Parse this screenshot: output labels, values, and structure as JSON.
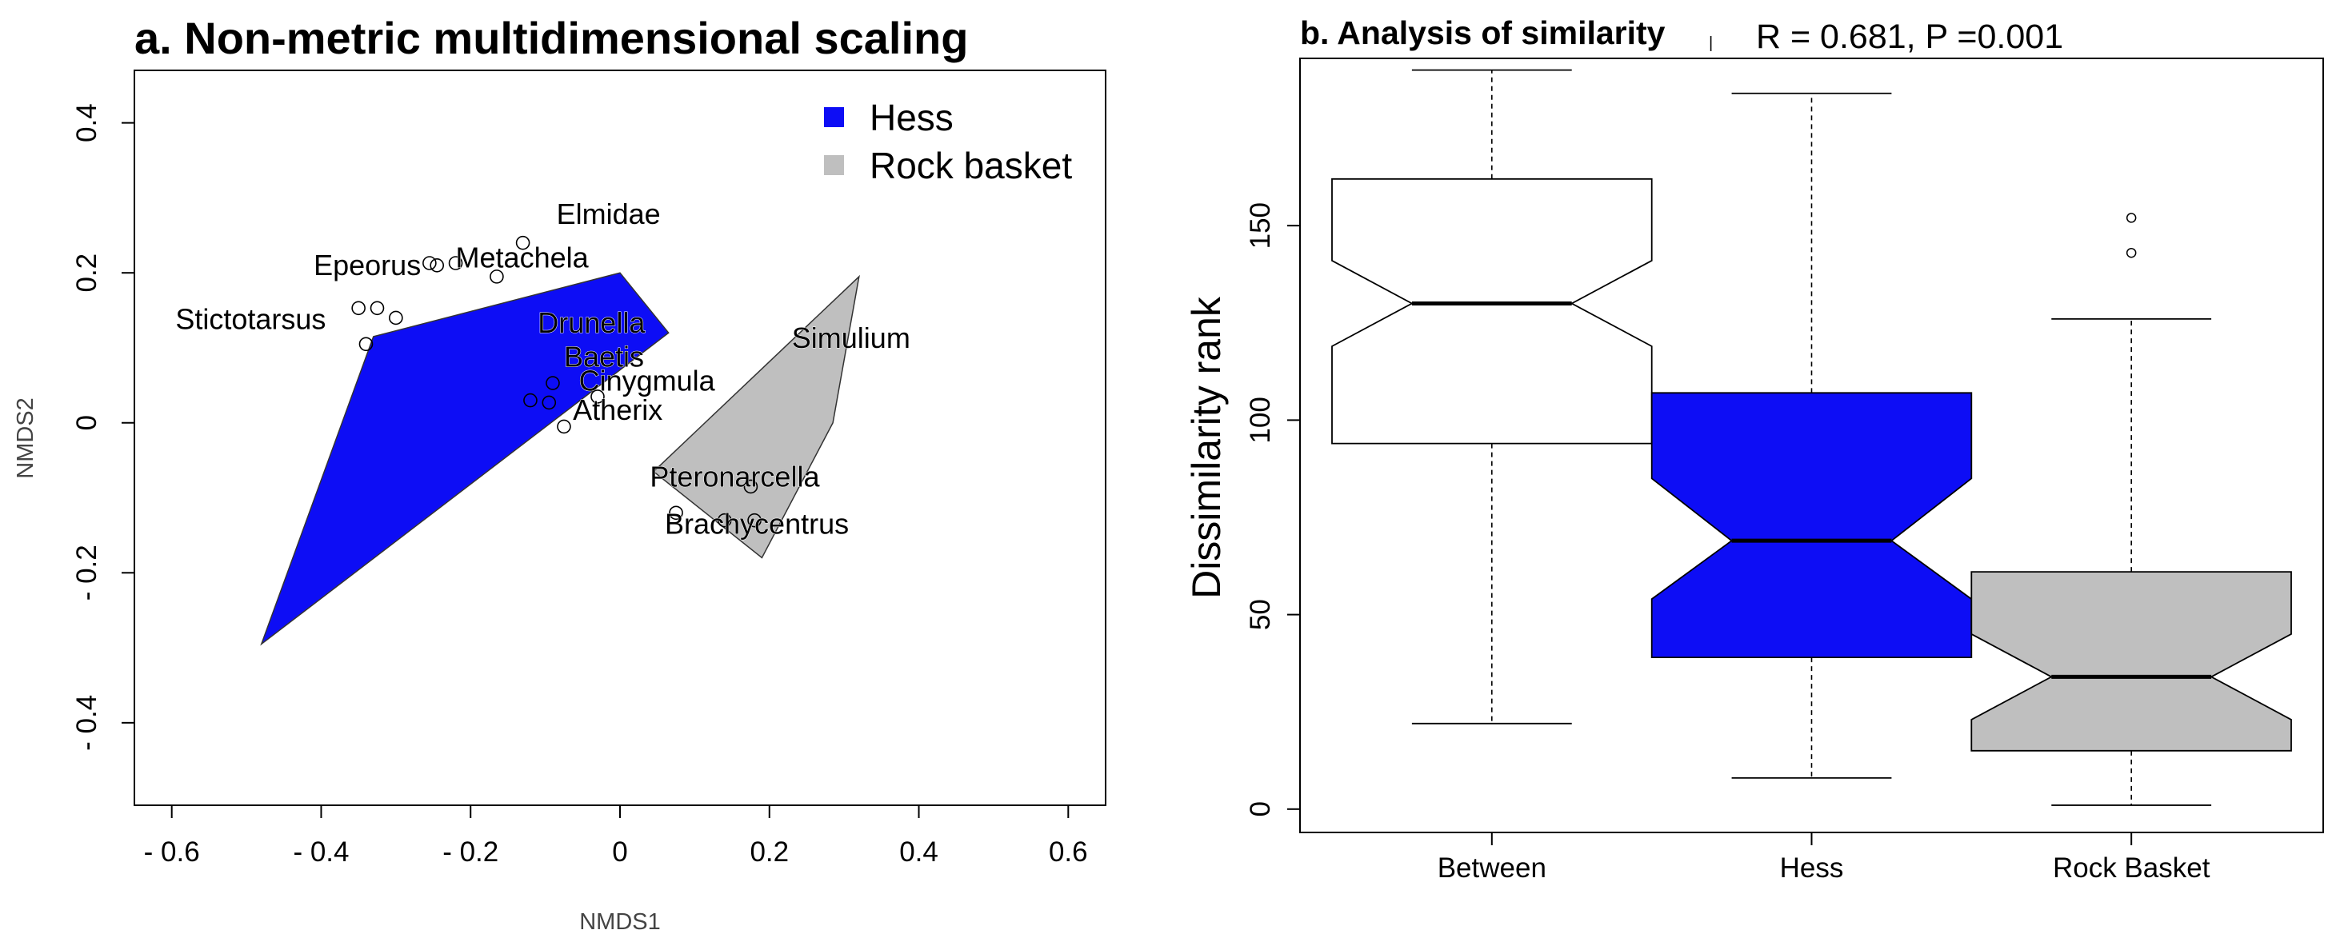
{
  "chart_data": [
    {
      "type": "scatter",
      "title": "a. Non-metric multidimensional scaling",
      "xlabel": "NMDS1",
      "ylabel": "NMDS2",
      "xlim": [
        -0.65,
        0.65
      ],
      "ylim": [
        -0.51,
        0.47
      ],
      "xticks": [
        -0.6,
        -0.4,
        -0.2,
        0,
        0.2,
        0.4,
        0.6
      ],
      "xtick_labels": [
        "- 0.6",
        "- 0.4",
        "- 0.2",
        "0",
        "0.2",
        "0.4",
        "0.6"
      ],
      "yticks": [
        -0.4,
        -0.2,
        0,
        0.2,
        0.4
      ],
      "ytick_labels": [
        "- 0.4",
        "- 0.2",
        "0",
        "0.2",
        "0.4"
      ],
      "legend": {
        "position": "top-right",
        "entries": [
          {
            "label": "Hess",
            "color": "#0d0df5"
          },
          {
            "label": "Rock basket",
            "color": "#bfbfbf"
          }
        ]
      },
      "hulls": [
        {
          "name": "Hess",
          "color": "#0d0df5",
          "points": [
            [
              -0.48,
              -0.295
            ],
            [
              -0.33,
              0.115
            ],
            [
              0.0,
              0.2
            ],
            [
              0.065,
              0.12
            ]
          ]
        },
        {
          "name": "Rock basket",
          "color": "#bfbfbf",
          "points": [
            [
              0.045,
              -0.065
            ],
            [
              0.32,
              0.195
            ],
            [
              0.285,
              0.0
            ],
            [
              0.19,
              -0.18
            ]
          ]
        }
      ],
      "points": [
        {
          "x": -0.35,
          "y": 0.153
        },
        {
          "x": -0.325,
          "y": 0.153
        },
        {
          "x": -0.3,
          "y": 0.14
        },
        {
          "x": -0.34,
          "y": 0.105
        },
        {
          "x": -0.255,
          "y": 0.213
        },
        {
          "x": -0.245,
          "y": 0.21
        },
        {
          "x": -0.22,
          "y": 0.213
        },
        {
          "x": -0.165,
          "y": 0.195
        },
        {
          "x": -0.13,
          "y": 0.24
        },
        {
          "x": -0.12,
          "y": 0.03
        },
        {
          "x": -0.09,
          "y": 0.053
        },
        {
          "x": -0.095,
          "y": 0.027
        },
        {
          "x": -0.075,
          "y": -0.005
        },
        {
          "x": -0.03,
          "y": 0.035
        },
        {
          "x": 0.075,
          "y": -0.12
        },
        {
          "x": 0.14,
          "y": -0.13
        },
        {
          "x": 0.175,
          "y": -0.085
        },
        {
          "x": 0.18,
          "y": -0.13
        }
      ],
      "species": [
        {
          "name": "Elmidae",
          "x": -0.085,
          "y": 0.265
        },
        {
          "name": "Metachela",
          "x": -0.22,
          "y": 0.207
        },
        {
          "name": "Epeorus",
          "x": -0.41,
          "y": 0.197
        },
        {
          "name": "Stictotarsus",
          "x": -0.595,
          "y": 0.125
        },
        {
          "name": "Drunella",
          "x": -0.11,
          "y": 0.12
        },
        {
          "name": "Baetis",
          "x": -0.075,
          "y": 0.075
        },
        {
          "name": "Cinygmula",
          "x": -0.055,
          "y": 0.043
        },
        {
          "name": "Atherix",
          "x": -0.063,
          "y": 0.004
        },
        {
          "name": "Simulium",
          "x": 0.23,
          "y": 0.1
        },
        {
          "name": "Pteronarcella",
          "x": 0.04,
          "y": -0.085
        },
        {
          "name": "Brachycentrus",
          "x": 0.06,
          "y": -0.148
        }
      ]
    },
    {
      "type": "box",
      "title": "b. Analysis of similarity",
      "stats_text": "R = 0.681, P =0.001",
      "xlabel": "",
      "ylabel": "Dissimilarity rank",
      "ylim": [
        -6,
        193
      ],
      "yticks": [
        0,
        50,
        100,
        150
      ],
      "categories": [
        "Between",
        "Hess",
        "Rock Basket"
      ],
      "notched": true,
      "boxes": [
        {
          "name": "Between",
          "color": "#ffffff",
          "min": 22,
          "q1": 94,
          "median": 130,
          "q3": 162,
          "max": 190,
          "notch_low": 119,
          "notch_high": 141,
          "outliers": []
        },
        {
          "name": "Hess",
          "color": "#0d0df5",
          "min": 8,
          "q1": 39,
          "median": 69,
          "q3": 107,
          "max": 184,
          "notch_low": 54,
          "notch_high": 85,
          "outliers": []
        },
        {
          "name": "Rock Basket",
          "color": "#bfbfbf",
          "min": 1,
          "q1": 15,
          "median": 34,
          "q3": 61,
          "max": 126,
          "notch_low": 23,
          "notch_high": 45,
          "outliers": [
            143,
            152
          ]
        }
      ]
    }
  ]
}
